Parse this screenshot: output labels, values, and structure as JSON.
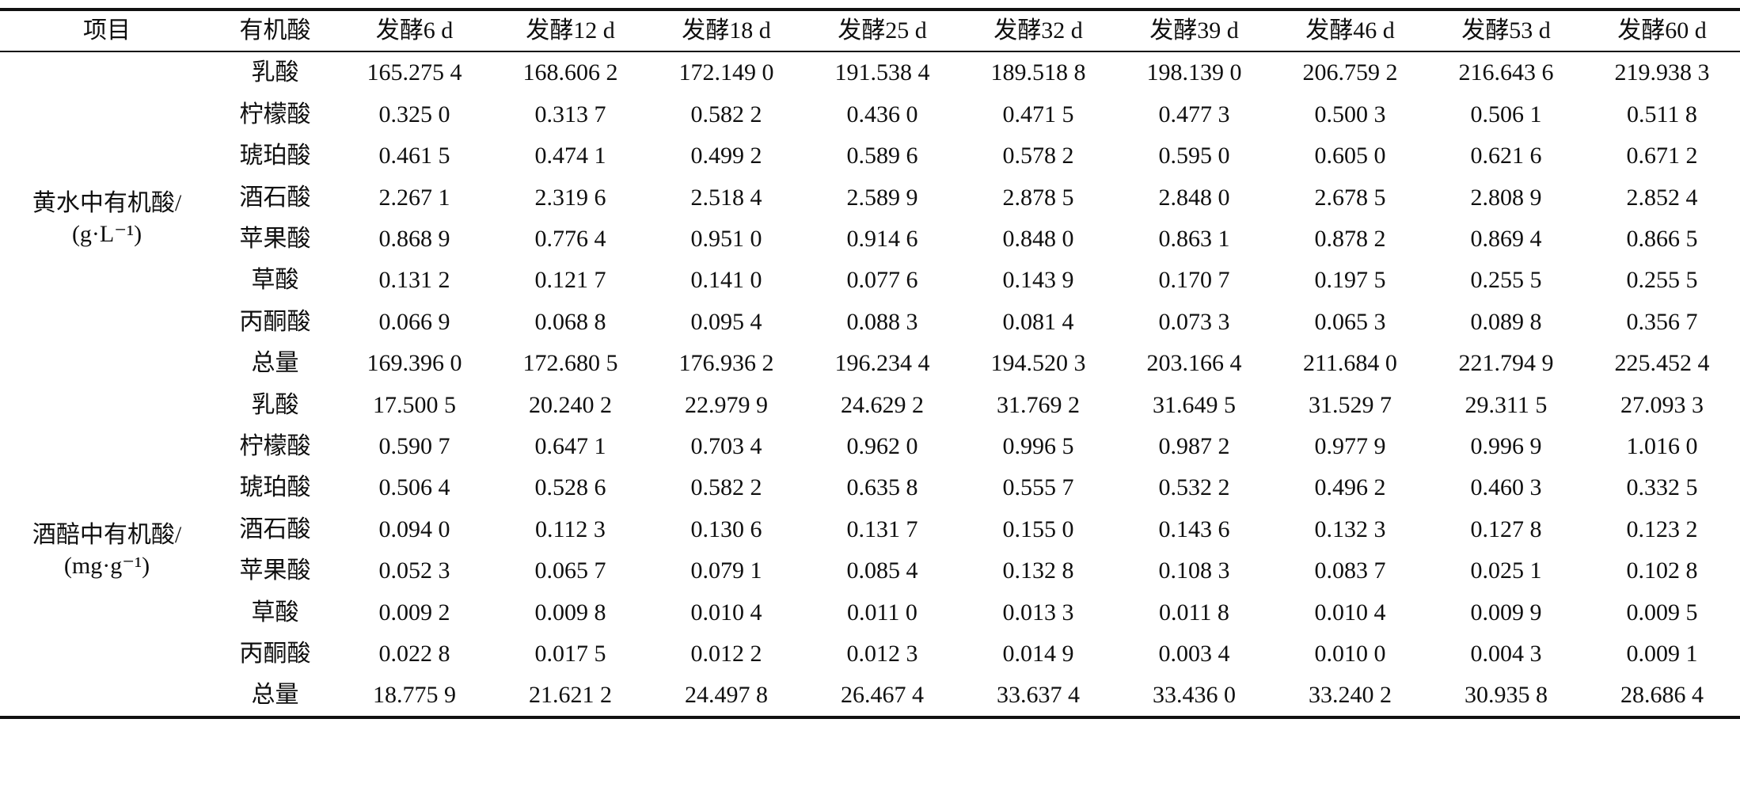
{
  "table": {
    "columns": [
      "项目",
      "有机酸",
      "发酵6 d",
      "发酵12 d",
      "发酵18 d",
      "发酵25 d",
      "发酵32 d",
      "发酵39 d",
      "发酵46 d",
      "发酵53 d",
      "发酵60 d"
    ],
    "groups": [
      {
        "item": "黄水中有机酸/",
        "unit": "(g·L⁻¹)",
        "rows": [
          {
            "acid": "乳酸",
            "values": [
              "165.275 4",
              "168.606 2",
              "172.149 0",
              "191.538 4",
              "189.518 8",
              "198.139 0",
              "206.759 2",
              "216.643 6",
              "219.938 3"
            ]
          },
          {
            "acid": "柠檬酸",
            "values": [
              "0.325 0",
              "0.313 7",
              "0.582 2",
              "0.436 0",
              "0.471 5",
              "0.477 3",
              "0.500 3",
              "0.506 1",
              "0.511 8"
            ]
          },
          {
            "acid": "琥珀酸",
            "values": [
              "0.461 5",
              "0.474 1",
              "0.499 2",
              "0.589 6",
              "0.578 2",
              "0.595 0",
              "0.605 0",
              "0.621 6",
              "0.671 2"
            ]
          },
          {
            "acid": "酒石酸",
            "values": [
              "2.267 1",
              "2.319 6",
              "2.518 4",
              "2.589 9",
              "2.878 5",
              "2.848 0",
              "2.678 5",
              "2.808 9",
              "2.852 4"
            ]
          },
          {
            "acid": "苹果酸",
            "values": [
              "0.868 9",
              "0.776 4",
              "0.951 0",
              "0.914 6",
              "0.848 0",
              "0.863 1",
              "0.878 2",
              "0.869 4",
              "0.866 5"
            ]
          },
          {
            "acid": "草酸",
            "values": [
              "0.131 2",
              "0.121 7",
              "0.141 0",
              "0.077 6",
              "0.143 9",
              "0.170 7",
              "0.197 5",
              "0.255 5",
              "0.255 5"
            ]
          },
          {
            "acid": "丙酮酸",
            "values": [
              "0.066 9",
              "0.068 8",
              "0.095 4",
              "0.088 3",
              "0.081 4",
              "0.073 3",
              "0.065 3",
              "0.089 8",
              "0.356 7"
            ]
          },
          {
            "acid": "总量",
            "values": [
              "169.396 0",
              "172.680 5",
              "176.936 2",
              "196.234 4",
              "194.520 3",
              "203.166 4",
              "211.684 0",
              "221.794 9",
              "225.452 4"
            ]
          }
        ]
      },
      {
        "item": "酒醅中有机酸/",
        "unit": "(mg·g⁻¹)",
        "rows": [
          {
            "acid": "乳酸",
            "values": [
              "17.500 5",
              "20.240 2",
              "22.979 9",
              "24.629 2",
              "31.769 2",
              "31.649 5",
              "31.529 7",
              "29.311 5",
              "27.093 3"
            ]
          },
          {
            "acid": "柠檬酸",
            "values": [
              "0.590 7",
              "0.647 1",
              "0.703 4",
              "0.962 0",
              "0.996 5",
              "0.987 2",
              "0.977 9",
              "0.996 9",
              "1.016 0"
            ]
          },
          {
            "acid": "琥珀酸",
            "values": [
              "0.506 4",
              "0.528 6",
              "0.582 2",
              "0.635 8",
              "0.555 7",
              "0.532 2",
              "0.496 2",
              "0.460 3",
              "0.332 5"
            ]
          },
          {
            "acid": "酒石酸",
            "values": [
              "0.094 0",
              "0.112 3",
              "0.130 6",
              "0.131 7",
              "0.155 0",
              "0.143 6",
              "0.132 3",
              "0.127 8",
              "0.123 2"
            ]
          },
          {
            "acid": "苹果酸",
            "values": [
              "0.052 3",
              "0.065 7",
              "0.079 1",
              "0.085 4",
              "0.132 8",
              "0.108 3",
              "0.083 7",
              "0.025 1",
              "0.102 8"
            ]
          },
          {
            "acid": "草酸",
            "values": [
              "0.009 2",
              "0.009 8",
              "0.010 4",
              "0.011 0",
              "0.013 3",
              "0.011 8",
              "0.010 4",
              "0.009 9",
              "0.009 5"
            ]
          },
          {
            "acid": "丙酮酸",
            "values": [
              "0.022 8",
              "0.017 5",
              "0.012 2",
              "0.012 3",
              "0.014 9",
              "0.003 4",
              "0.010 0",
              "0.004 3",
              "0.009 1"
            ]
          },
          {
            "acid": "总量",
            "values": [
              "18.775 9",
              "21.621 2",
              "24.497 8",
              "26.467 4",
              "33.637 4",
              "33.436 0",
              "33.240 2",
              "30.935 8",
              "28.686 4"
            ]
          }
        ]
      }
    ]
  },
  "colors": {
    "text": "#0f0f0f",
    "rule": "#111111",
    "background": "#ffffff"
  }
}
